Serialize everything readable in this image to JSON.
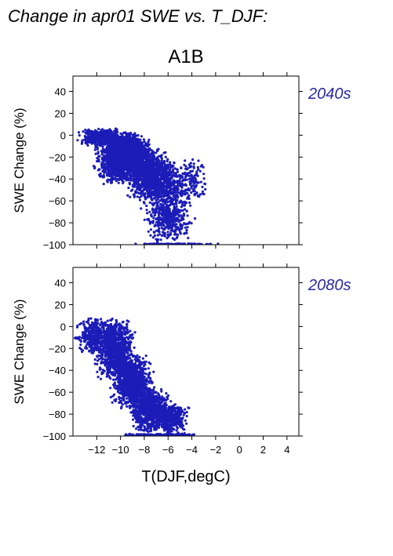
{
  "title": "Change in apr01 SWE vs. T_DJF:",
  "subtitle": "A1B",
  "xlabel": "T(DJF,degC)",
  "colors": {
    "points": "#1c1cb8",
    "period_label": "#2929a6"
  },
  "chart_data": [
    {
      "type": "scatter",
      "panel": "2040s",
      "title": "A1B",
      "xlabel": "",
      "ylabel": "SWE Change (%)",
      "xlim": [
        -14,
        5
      ],
      "ylim": [
        -100,
        54
      ],
      "xticks": [
        -12,
        -10,
        -8,
        -6,
        -4,
        -2,
        0,
        2,
        4
      ],
      "yticks": [
        -100,
        -80,
        -60,
        -40,
        -20,
        0,
        20,
        40
      ],
      "xtick_labels": [
        "−12",
        "−10",
        "−8",
        "−6",
        "−4",
        "−2",
        "0",
        "2",
        "4"
      ],
      "ytick_labels": [
        "−100",
        "−80",
        "−60",
        "−40",
        "−20",
        "0",
        "20",
        "40"
      ],
      "series": [
        {
          "clusters": [
            {
              "x": [
                -13.8,
                -9.5
              ],
              "y": [
                -10,
                6
              ],
              "n": 520
            },
            {
              "x": [
                -12.5,
                -7.5
              ],
              "y": [
                -45,
                4
              ],
              "n": 1300
            },
            {
              "x": [
                -11.5,
                -7.0
              ],
              "y": [
                -30,
                0
              ],
              "n": 700
            },
            {
              "x": [
                -10.0,
                -5.5
              ],
              "y": [
                -60,
                -10
              ],
              "n": 800
            },
            {
              "x": [
                -9.0,
                -3.5
              ],
              "y": [
                -70,
                -20
              ],
              "n": 520
            },
            {
              "x": [
                -8.5,
                -3.5
              ],
              "y": [
                -98,
                -55
              ],
              "n": 420
            },
            {
              "x": [
                -5.5,
                -2.3
              ],
              "y": [
                -65,
                -20
              ],
              "n": 110
            },
            {
              "x": [
                -9.5,
                -1.5
              ],
              "y": [
                -100,
                -99
              ],
              "n": 140
            }
          ]
        }
      ]
    },
    {
      "type": "scatter",
      "panel": "2080s",
      "xlabel": "T(DJF,degC)",
      "ylabel": "SWE Change (%)",
      "xlim": [
        -14,
        5
      ],
      "ylim": [
        -100,
        54
      ],
      "xticks": [
        -12,
        -10,
        -8,
        -6,
        -4,
        -2,
        0,
        2,
        4
      ],
      "yticks": [
        -100,
        -80,
        -60,
        -40,
        -20,
        0,
        20,
        40
      ],
      "xtick_labels": [
        "−12",
        "−10",
        "−8",
        "−6",
        "−4",
        "−2",
        "0",
        "2",
        "4"
      ],
      "ytick_labels": [
        "−100",
        "−80",
        "−60",
        "−40",
        "−20",
        "0",
        "20",
        "40"
      ],
      "series": [
        {
          "clusters": [
            {
              "x": [
                -14.0,
                -10.5
              ],
              "y": [
                -25,
                8
              ],
              "n": 360
            },
            {
              "x": [
                -12.5,
                -8.5
              ],
              "y": [
                -50,
                8
              ],
              "n": 1000
            },
            {
              "x": [
                -11.0,
                -7.0
              ],
              "y": [
                -75,
                -25
              ],
              "n": 1000
            },
            {
              "x": [
                -9.5,
                -5.5
              ],
              "y": [
                -98,
                -55
              ],
              "n": 800
            },
            {
              "x": [
                -7.5,
                -4.0
              ],
              "y": [
                -98,
                -70
              ],
              "n": 360
            },
            {
              "x": [
                -10.5,
                -2.3
              ],
              "y": [
                -100,
                -98
              ],
              "n": 180
            }
          ]
        }
      ]
    }
  ],
  "panels": [
    {
      "period": "2040s",
      "ylabel": "SWE Change (%)"
    },
    {
      "period": "2080s",
      "ylabel": "SWE Change (%)"
    }
  ]
}
